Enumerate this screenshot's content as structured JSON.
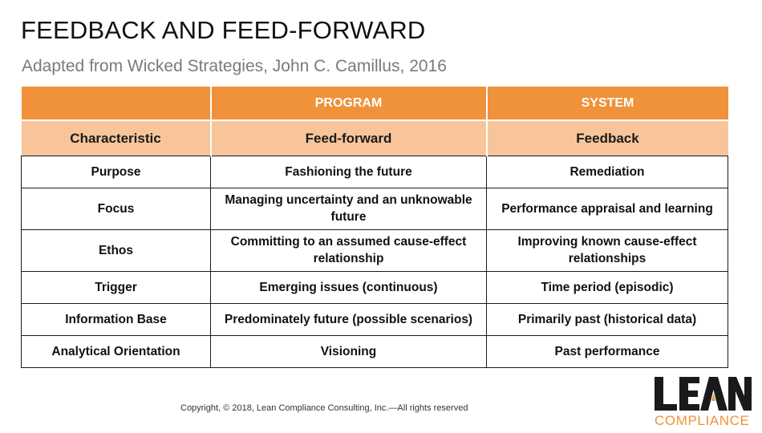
{
  "slide": {
    "title": "FEEDBACK AND FEED-FORWARD",
    "subtitle": "Adapted from Wicked Strategies, John C. Camillus, 2016",
    "copyright": "Copyright, © 2018, Lean Compliance Consulting, Inc.—All rights reserved"
  },
  "table": {
    "group_headers": [
      "",
      "PROGRAM",
      "SYSTEM"
    ],
    "column_headers": [
      "Characteristic",
      "Feed-forward",
      "Feedback"
    ],
    "rows": [
      [
        "Purpose",
        "Fashioning the future",
        "Remediation"
      ],
      [
        "Focus",
        "Managing uncertainty and an unknowable future",
        "Performance appraisal and learning"
      ],
      [
        "Ethos",
        "Committing to an assumed cause-effect relationship",
        "Improving known cause-effect relationships"
      ],
      [
        "Trigger",
        "Emerging issues (continuous)",
        "Time period (episodic)"
      ],
      [
        "Information Base",
        "Predominately future (possible scenarios)",
        "Primarily past (historical data)"
      ],
      [
        "Analytical Orientation",
        "Visioning",
        "Past performance"
      ]
    ]
  },
  "logo": {
    "word": "LEAN",
    "subword": "COMPLIANCE",
    "accent_color": "#f0923a",
    "dark_color": "#1a1a1a"
  },
  "colors": {
    "header_orange": "#f0923a",
    "subheader_peach": "#f8c59a"
  }
}
